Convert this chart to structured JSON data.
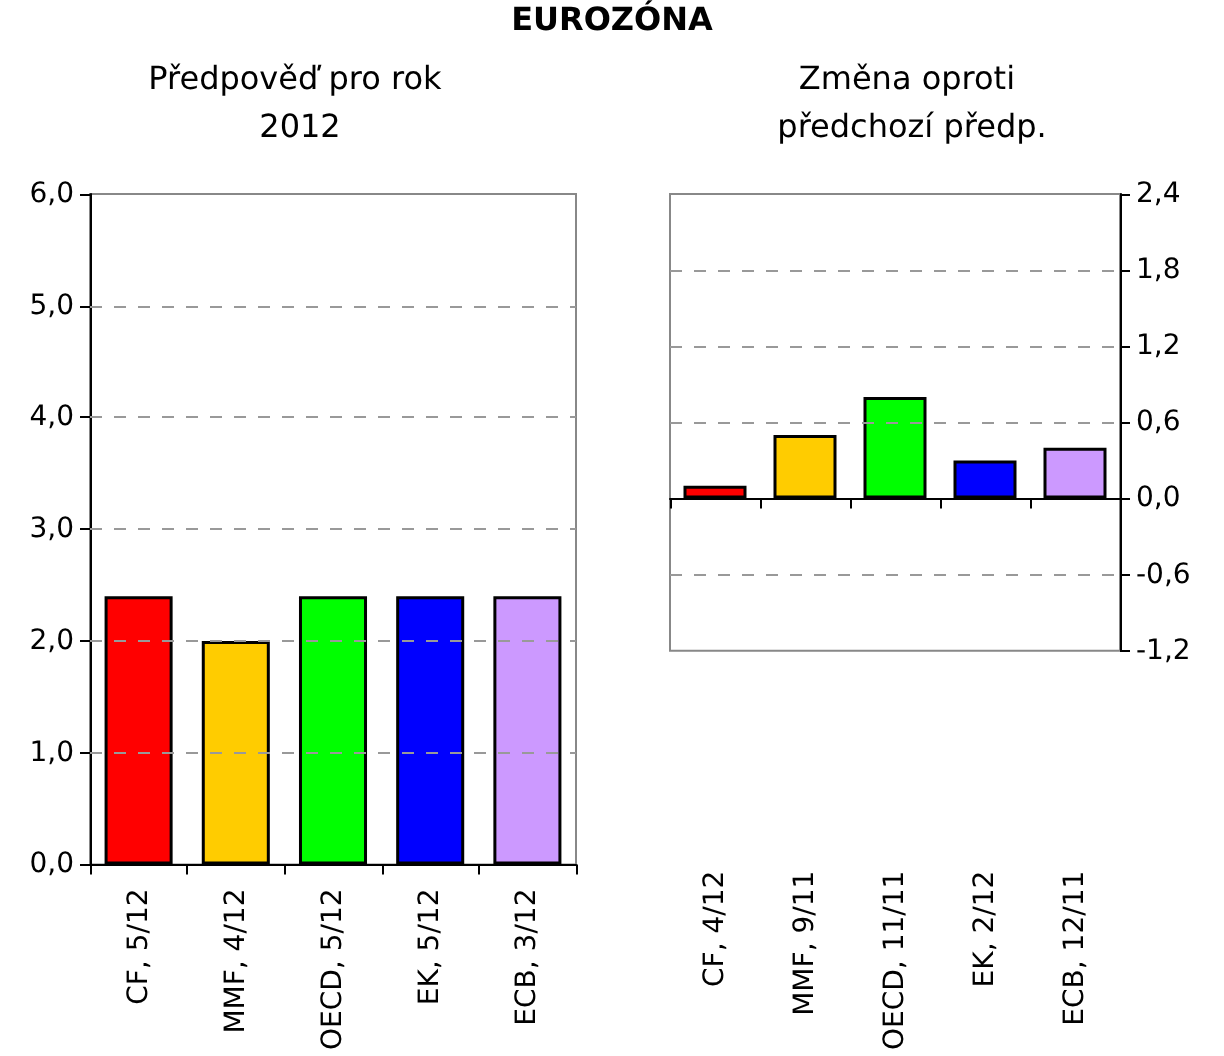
{
  "chart_data": [
    {
      "type": "bar",
      "title": "Předpověď pro rok 2012",
      "annotations": [
        "EUROZÓNA"
      ],
      "categories": [
        "CF, 5/12",
        "MMF, 4/12",
        "OECD, 5/12",
        "EK, 5/12",
        "ECB, 3/12"
      ],
      "values": [
        2.4,
        2.0,
        2.4,
        2.4,
        2.4
      ],
      "colors": [
        "#ff0000",
        "#ffcc00",
        "#00ff00",
        "#0000ff",
        "#cc99ff"
      ],
      "ylim": [
        0,
        6
      ],
      "yticks": [
        {
          "value": 0,
          "label": "0,0"
        },
        {
          "value": 1,
          "label": "1,0"
        },
        {
          "value": 2,
          "label": "2,0"
        },
        {
          "value": 3,
          "label": "3,0"
        },
        {
          "value": 4,
          "label": "4,0"
        },
        {
          "value": 5,
          "label": "5,0"
        },
        {
          "value": 6,
          "label": "6,0"
        }
      ],
      "grid": "y"
    },
    {
      "type": "bar",
      "title": "Změna oproti předchozí předp.",
      "categories": [
        "CF, 4/12",
        "MMF, 9/11",
        "OECD, 11/11",
        "EK, 2/12",
        "ECB, 12/11"
      ],
      "series": [
        {
          "axis": "y2",
          "values": [
            0.1,
            0.5,
            0.8,
            0.3,
            0.4
          ],
          "colors": [
            "#ff0000",
            "#ffcc00",
            "#00ff00",
            "#0000ff",
            "#cc99ff"
          ]
        }
      ],
      "y2lim": [
        -1.2,
        2.4
      ],
      "y2ticks": [
        {
          "value": -1.2,
          "label": "-1,2"
        },
        {
          "value": -0.6,
          "label": "-0,6"
        },
        {
          "value": 0,
          "label": "0,0"
        },
        {
          "value": 0.6,
          "label": "0,6"
        },
        {
          "value": 1.2,
          "label": "1,2"
        },
        {
          "value": 1.8,
          "label": "1,8"
        },
        {
          "value": 2.4,
          "label": "2,4"
        }
      ],
      "grid": "y"
    }
  ]
}
